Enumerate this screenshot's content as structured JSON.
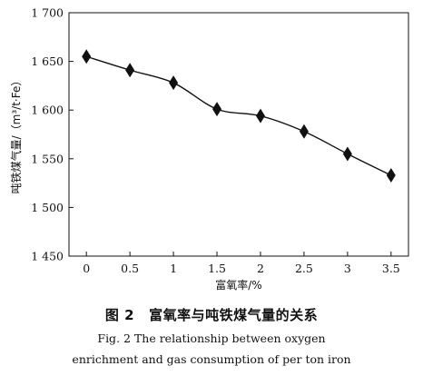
{
  "chart_data": {
    "type": "line",
    "x": [
      0,
      0.5,
      1,
      1.5,
      2,
      2.5,
      3,
      3.5
    ],
    "series": [
      {
        "values": [
          1655,
          1641,
          1628,
          1601,
          1594,
          1578,
          1555,
          1533
        ]
      }
    ],
    "xticks": [
      "0",
      "0.5",
      "1",
      "1.5",
      "2",
      "2.5",
      "3",
      "3.5"
    ],
    "yticks": [
      "1 450",
      "1 500",
      "1 550",
      "1 600",
      "1 650",
      "1 700"
    ],
    "xlim": [
      -0.2,
      3.7
    ],
    "ylim": [
      1450,
      1700
    ],
    "ytick_values": [
      1450,
      1500,
      1550,
      1600,
      1650,
      1700
    ],
    "xlabel": "富氧率/%",
    "ylabel": "吨铁煤气量/（m³/t·Fe）",
    "marker": "diamond",
    "grid": false,
    "line_color": "#111111"
  },
  "caption": {
    "figure_number": "图 2",
    "title_cn": "富氧率与吨铁煤气量的关系",
    "title_en_line1": "Fig. 2    The relationship between oxygen",
    "title_en_line2": "enrichment and gas consumption of per ton iron"
  }
}
